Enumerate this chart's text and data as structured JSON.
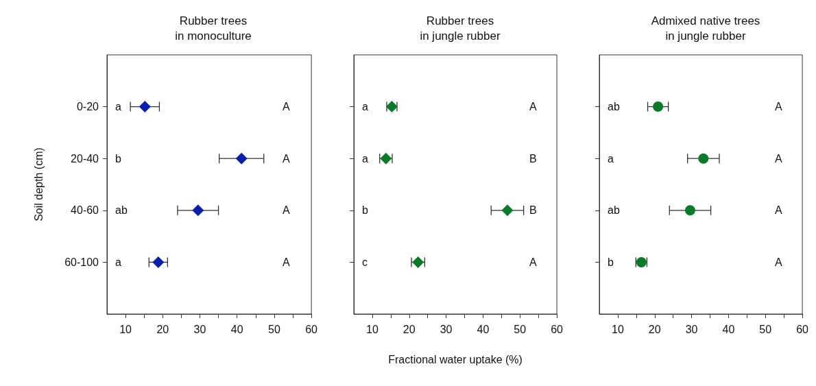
{
  "chart_data": [
    {
      "type": "scatter",
      "title": "Rubber trees\nin monoculture",
      "ylabel": "Soil depth (cm)",
      "orientation": "horizontal",
      "categories": [
        "0-20",
        "20-40",
        "40-60",
        "60-100"
      ],
      "marker": "diamond",
      "series": [
        {
          "color": "#0a1fa8",
          "values": [
            15.2,
            41.2,
            29.5,
            18.8
          ],
          "errors": [
            3.9,
            6.0,
            5.5,
            2.5
          ]
        }
      ],
      "xlim": [
        5,
        60
      ],
      "xticks": [
        10,
        {
          "value": 15,
          "label": null
        },
        20,
        {
          "value": 25,
          "label": null
        },
        30,
        {
          "value": 35,
          "label": null
        },
        40,
        {
          "value": 45,
          "label": null
        },
        50,
        {
          "value": 55,
          "label": null
        },
        60
      ],
      "annotations": [
        "a",
        "b",
        "ab",
        "a",
        "A",
        "A",
        "A",
        "A"
      ]
    },
    {
      "type": "scatter",
      "title": "Rubber trees\nin jungle rubber",
      "xlabel": "Fractional water uptake (%)",
      "orientation": "horizontal",
      "categories": [
        null,
        null,
        null,
        null
      ],
      "marker": "diamond",
      "series": [
        {
          "color": "#0a7a2a",
          "values": [
            15.3,
            13.7,
            46.6,
            22.4
          ],
          "errors": [
            1.4,
            1.7,
            4.4,
            1.8
          ]
        }
      ],
      "xlim": [
        5,
        60
      ],
      "xticks": [
        10,
        {
          "value": 15,
          "label": null
        },
        20,
        {
          "value": 25,
          "label": null
        },
        30,
        {
          "value": 35,
          "label": null
        },
        40,
        {
          "value": 45,
          "label": null
        },
        50,
        {
          "value": 55,
          "label": null
        },
        60
      ],
      "annotations": [
        "a",
        "a",
        "b",
        "c",
        "A",
        "B",
        "B",
        "A"
      ]
    },
    {
      "type": "scatter",
      "title": "Admixed native trees\nin jungle rubber",
      "orientation": "horizontal",
      "categories": [
        null,
        null,
        null,
        null
      ],
      "marker": "circle",
      "series": [
        {
          "color": "#0a7a2a",
          "values": [
            20.9,
            33.2,
            29.6,
            16.4
          ],
          "errors": [
            2.8,
            4.3,
            5.6,
            1.5
          ]
        }
      ],
      "xlim": [
        5,
        60
      ],
      "xticks": [
        10,
        {
          "value": 15,
          "label": null
        },
        20,
        {
          "value": 25,
          "label": null
        },
        30,
        {
          "value": 35,
          "label": null
        },
        40,
        {
          "value": 45,
          "label": null
        },
        50,
        {
          "value": 55,
          "label": null
        },
        60
      ],
      "annotations": [
        "ab",
        "a",
        "ab",
        "b",
        "A",
        "A",
        "A",
        "A"
      ]
    }
  ]
}
